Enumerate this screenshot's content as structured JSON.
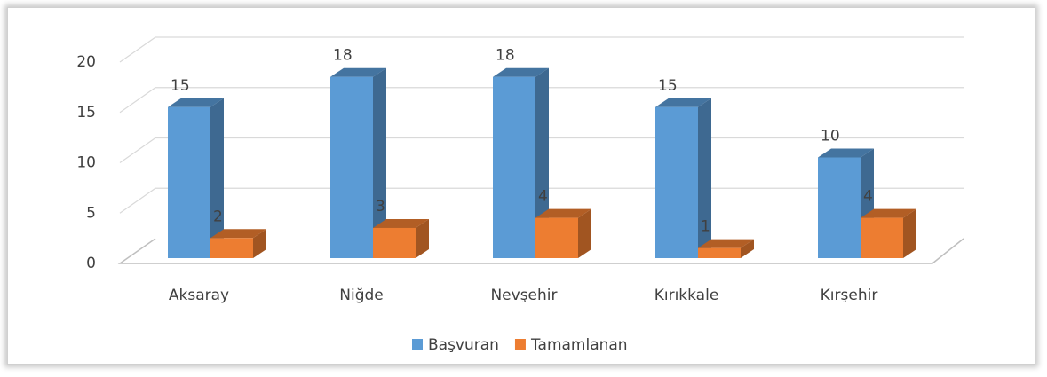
{
  "chart_data": {
    "type": "bar3d",
    "categories": [
      "Aksaray",
      "Niğde",
      "Nevşehir",
      "Kırıkkale",
      "Kırşehir"
    ],
    "series": [
      {
        "name": "Başvuran",
        "color": "#5b9bd5",
        "values": [
          15,
          18,
          18,
          15,
          10
        ]
      },
      {
        "name": "Tamamlanan",
        "color": "#ed7d31",
        "values": [
          2,
          3,
          4,
          1,
          4
        ]
      }
    ],
    "ylim": [
      0,
      20
    ],
    "yticks": [
      0,
      5,
      10,
      15,
      20
    ],
    "grid": true,
    "legend": "bottom"
  }
}
